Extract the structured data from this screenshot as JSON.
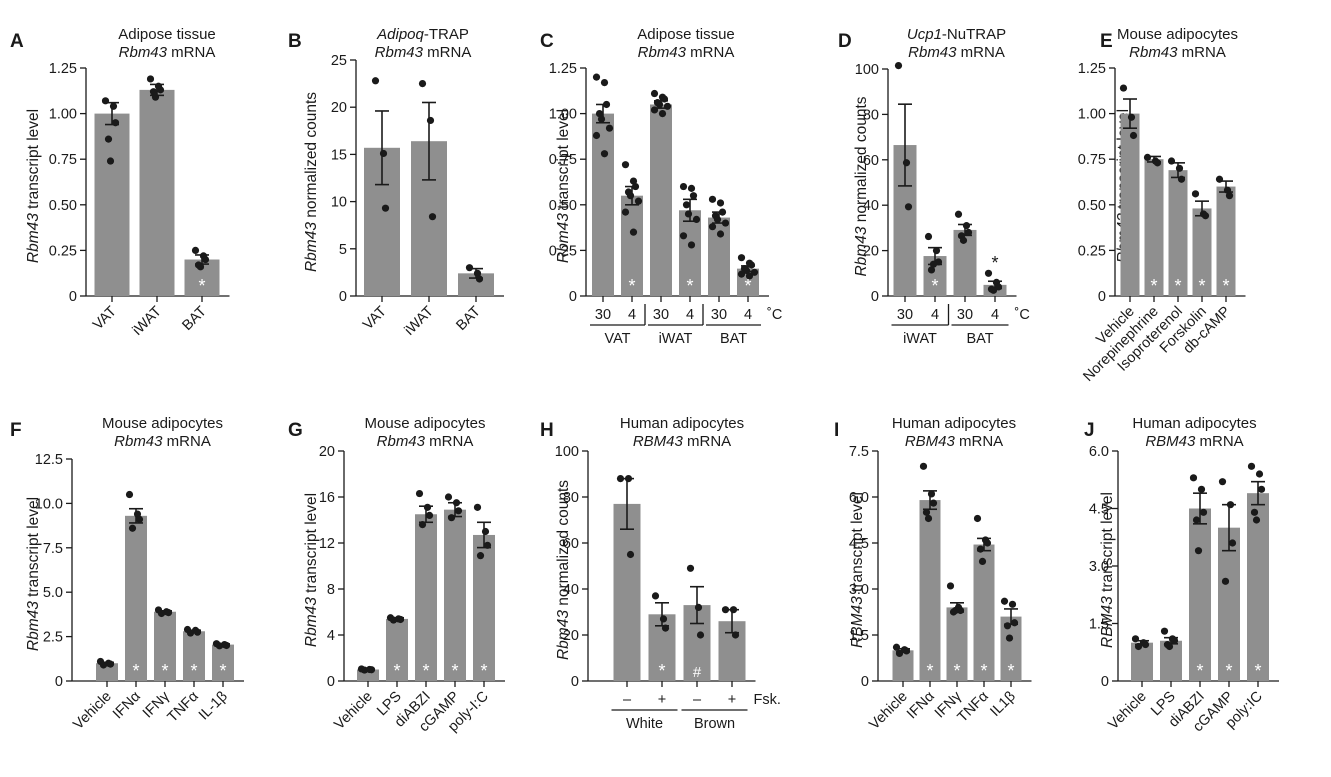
{
  "chart_data": [
    {
      "panel": "A",
      "type": "bar",
      "title": "Adipose tissue",
      "subtitle": "Rbm43 mRNA",
      "ylabel": "Rbm43 transcript level",
      "ylim": [
        0,
        1.25
      ],
      "yticks": [
        "0",
        "0.25",
        "0.50",
        "0.75",
        "1.00",
        "1.25"
      ],
      "ytickvals": [
        0,
        0.25,
        0.5,
        0.75,
        1.0,
        1.25
      ],
      "categories": [
        "VAT",
        "iWAT",
        "BAT"
      ],
      "values": [
        1.0,
        1.13,
        0.2
      ],
      "sem": [
        0.06,
        0.03,
        0.025
      ],
      "points": [
        [
          1.07,
          1.04,
          0.95,
          0.86,
          0.74
        ],
        [
          1.19,
          1.15,
          1.13,
          1.12,
          1.09
        ],
        [
          0.25,
          0.22,
          0.2,
          0.17,
          0.16
        ]
      ],
      "marks": [
        "",
        "",
        "*"
      ]
    },
    {
      "panel": "B",
      "type": "bar",
      "title": "Adipoq-TRAP",
      "subtitle": "Rbm43 mRNA",
      "ylabel": "Rbm43 normalized counts",
      "ylim": [
        0,
        25
      ],
      "yticks": [
        "0",
        "5",
        "10",
        "15",
        "20",
        "25"
      ],
      "ytickvals": [
        0,
        5,
        10,
        15,
        20,
        25
      ],
      "categories": [
        "VAT",
        "iWAT",
        "BAT"
      ],
      "values": [
        15.7,
        16.4,
        2.4
      ],
      "sem": [
        3.9,
        4.1,
        0.5
      ],
      "points": [
        [
          22.8,
          15.1,
          9.3
        ],
        [
          22.5,
          18.6,
          8.4
        ],
        [
          3.0,
          2.4,
          1.8
        ]
      ],
      "marks": [
        "",
        "",
        ""
      ]
    },
    {
      "panel": "C",
      "type": "bar",
      "title": "Adipose tissue",
      "subtitle": "Rbm43 mRNA",
      "ylabel": "Rbm43 transcript level",
      "ylim": [
        0,
        1.25
      ],
      "yticks": [
        "0",
        "0.25",
        "0.50",
        "0.75",
        "1.00",
        "1.25"
      ],
      "ytickvals": [
        0,
        0.25,
        0.5,
        0.75,
        1.0,
        1.25
      ],
      "categories": [
        "30",
        "4",
        "30",
        "4",
        "30",
        "4"
      ],
      "groups": [
        "VAT",
        "iWAT",
        "BAT"
      ],
      "unit": "˚C",
      "values": [
        1.0,
        0.55,
        1.05,
        0.47,
        0.43,
        0.15
      ],
      "sem": [
        0.05,
        0.05,
        0.02,
        0.06,
        0.03,
        0.015
      ],
      "points": [
        [
          1.2,
          1.17,
          1.05,
          1.0,
          0.97,
          0.92,
          0.88,
          0.78
        ],
        [
          0.72,
          0.63,
          0.6,
          0.57,
          0.55,
          0.52,
          0.46,
          0.35
        ],
        [
          1.11,
          1.09,
          1.08,
          1.06,
          1.05,
          1.04,
          1.02,
          1.0
        ],
        [
          0.6,
          0.59,
          0.55,
          0.5,
          0.45,
          0.42,
          0.33,
          0.28
        ],
        [
          0.53,
          0.51,
          0.46,
          0.44,
          0.42,
          0.4,
          0.38,
          0.34
        ],
        [
          0.21,
          0.18,
          0.17,
          0.15,
          0.14,
          0.13,
          0.12,
          0.11
        ]
      ],
      "marks": [
        "",
        "*",
        "",
        "*",
        "",
        "*"
      ]
    },
    {
      "panel": "D",
      "type": "bar",
      "title": "Ucp1-NuTRAP",
      "subtitle": "Rbm43 mRNA",
      "ylabel": "Rbm43 normalized counts",
      "ylim": [
        0,
        100
      ],
      "yticks": [
        "0",
        "20",
        "40",
        "60",
        "80",
        "100"
      ],
      "ytickvals": [
        0,
        20,
        40,
        60,
        80,
        100
      ],
      "categories": [
        "30",
        "4",
        "30",
        "4"
      ],
      "groups": [
        "iWAT",
        "BAT"
      ],
      "unit": "˚C",
      "values": [
        66.5,
        17.6,
        29.1,
        4.9
      ],
      "sem": [
        18.0,
        3.7,
        2.4,
        1.6
      ],
      "points": [
        [
          101.5,
          58.7,
          39.3
        ],
        [
          26.2,
          20.0,
          15.0,
          11.5,
          14.0
        ],
        [
          36.0,
          31.0,
          28.0,
          26.5,
          24.5
        ],
        [
          10.0,
          6.0,
          4.0,
          3.0,
          2.5
        ]
      ],
      "marks": [
        "",
        "*",
        "",
        "*"
      ],
      "markColors": [
        "",
        "white",
        "",
        "black"
      ]
    },
    {
      "panel": "E",
      "type": "bar",
      "title": "Mouse adipocytes",
      "subtitle": "Rbm43 mRNA",
      "ylabel": "Rbm43 transcript level",
      "ylim": [
        0,
        1.25
      ],
      "yticks": [
        "0",
        "0.25",
        "0.50",
        "0.75",
        "1.00",
        "1.25"
      ],
      "ytickvals": [
        0,
        0.25,
        0.5,
        0.75,
        1.0,
        1.25
      ],
      "categories": [
        "Vehicle",
        "Norepinephrine",
        "Isoproterenol",
        "Forskolin",
        "db-cAMP"
      ],
      "values": [
        1.0,
        0.75,
        0.69,
        0.48,
        0.6
      ],
      "sem": [
        0.08,
        0.015,
        0.04,
        0.04,
        0.03
      ],
      "points": [
        [
          1.14,
          0.98,
          0.88
        ],
        [
          0.76,
          0.74,
          0.73
        ],
        [
          0.74,
          0.7,
          0.64
        ],
        [
          0.56,
          0.45,
          0.44
        ],
        [
          0.64,
          0.58,
          0.55
        ]
      ],
      "marks": [
        "",
        "*",
        "*",
        "*",
        "*"
      ]
    },
    {
      "panel": "F",
      "type": "bar",
      "title": "Mouse adipocytes",
      "subtitle": "Rbm43 mRNA",
      "ylabel": "Rbm43 transcript level",
      "ylim": [
        0,
        12.5
      ],
      "yticks": [
        "0",
        "2.5",
        "5.0",
        "7.5",
        "10.0",
        "12.5"
      ],
      "ytickvals": [
        0,
        2.5,
        5,
        7.5,
        10,
        12.5
      ],
      "categories": [
        "Vehicle",
        "IFNα",
        "IFNγ",
        "TNFα",
        "IL-1β"
      ],
      "values": [
        1.0,
        9.3,
        3.9,
        2.8,
        2.05
      ],
      "sem": [
        0.05,
        0.4,
        0.05,
        0.06,
        0.04
      ],
      "points": [
        [
          1.1,
          1.0,
          0.95,
          0.9
        ],
        [
          10.5,
          9.4,
          9.1,
          8.6
        ],
        [
          4.0,
          3.9,
          3.85,
          3.8
        ],
        [
          2.9,
          2.85,
          2.75,
          2.7
        ],
        [
          2.1,
          2.05,
          2.0,
          1.98
        ]
      ],
      "marks": [
        "",
        "*",
        "*",
        "*",
        "*"
      ]
    },
    {
      "panel": "G",
      "type": "bar",
      "title": "Mouse adipocytes",
      "subtitle": "Rbm43 mRNA",
      "ylabel": "Rbm43 transcript level",
      "ylim": [
        0,
        20
      ],
      "yticks": [
        "0",
        "4",
        "8",
        "12",
        "16",
        "20"
      ],
      "ytickvals": [
        0,
        4,
        8,
        12,
        16,
        20
      ],
      "categories": [
        "Vehicle",
        "LPS",
        "diABZI",
        "cGAMP",
        "poly-I:C"
      ],
      "values": [
        1.0,
        5.4,
        14.5,
        14.9,
        12.7
      ],
      "sem": [
        0.03,
        0.1,
        0.7,
        0.6,
        1.1
      ],
      "points": [
        [
          1.05,
          1.0,
          0.98,
          0.95
        ],
        [
          5.5,
          5.4,
          5.35,
          5.3
        ],
        [
          16.3,
          15.1,
          14.4,
          13.6
        ],
        [
          16.0,
          15.5,
          14.8,
          14.2
        ],
        [
          15.1,
          13.0,
          11.8,
          10.9
        ]
      ],
      "marks": [
        "",
        "*",
        "*",
        "*",
        "*"
      ]
    },
    {
      "panel": "H",
      "type": "bar",
      "title": "Human adipocytes",
      "subtitle": "RBM43 mRNA",
      "ylabel": "Rbm43 normalized counts",
      "ylim": [
        0,
        100
      ],
      "yticks": [
        "0",
        "20",
        "40",
        "60",
        "80",
        "100"
      ],
      "ytickvals": [
        0,
        20,
        40,
        60,
        80,
        100
      ],
      "categories": [
        "–",
        "+",
        "–",
        "+"
      ],
      "groups": [
        "White",
        "Brown"
      ],
      "unit": "Fsk.",
      "values": [
        77.0,
        29.0,
        33.0,
        26.0
      ],
      "sem": [
        11.0,
        5.0,
        8.0,
        5.0
      ],
      "points": [
        [
          88.0,
          88.0,
          55.0
        ],
        [
          37.0,
          27.0,
          23.0
        ],
        [
          49.0,
          32.0,
          20.0
        ],
        [
          31.0,
          31.0,
          20.0
        ]
      ],
      "marks": [
        "",
        "*",
        "#",
        ""
      ]
    },
    {
      "panel": "I",
      "type": "bar",
      "title": "Human adipocytes",
      "subtitle": "RBM43 mRNA",
      "ylabel": "RBM43 transcript level",
      "ylim": [
        0,
        7.5
      ],
      "yticks": [
        "0",
        "1.5",
        "3.0",
        "4.5",
        "6.0",
        "7.5"
      ],
      "ytickvals": [
        0,
        1.5,
        3,
        4.5,
        6,
        7.5
      ],
      "categories": [
        "Vehicle",
        "IFNα",
        "IFNγ",
        "TNFα",
        "IL1β"
      ],
      "values": [
        1.0,
        5.9,
        2.4,
        4.45,
        2.1
      ],
      "sem": [
        0.05,
        0.3,
        0.15,
        0.2,
        0.25
      ],
      "points": [
        [
          1.1,
          1.02,
          0.98,
          0.9
        ],
        [
          7.0,
          6.1,
          5.8,
          5.5,
          5.3
        ],
        [
          3.1,
          2.4,
          2.3,
          2.25,
          2.3
        ],
        [
          5.3,
          4.6,
          4.5,
          4.3,
          3.9
        ],
        [
          2.6,
          2.5,
          1.9,
          1.8,
          1.4
        ]
      ],
      "marks": [
        "",
        "*",
        "*",
        "*",
        "*"
      ]
    },
    {
      "panel": "J",
      "type": "bar",
      "title": "Human adipocytes",
      "subtitle": "RBM43 mRNA",
      "ylabel": "RBM43 transcript level",
      "ylim": [
        0,
        6
      ],
      "yticks": [
        "0",
        "1.5",
        "3.0",
        "4.5",
        "6.0"
      ],
      "ytickvals": [
        0,
        1.5,
        3,
        4.5,
        6
      ],
      "categories": [
        "Vehicle",
        "LPS",
        "diABZI",
        "cGAMP",
        "poly:IC"
      ],
      "values": [
        1.0,
        1.05,
        4.5,
        4.0,
        4.9
      ],
      "sem": [
        0.05,
        0.08,
        0.4,
        0.6,
        0.3
      ],
      "points": [
        [
          1.1,
          1.0,
          0.95,
          0.9
        ],
        [
          1.3,
          1.1,
          1.05,
          0.95,
          0.9
        ],
        [
          5.3,
          5.0,
          4.4,
          4.2,
          3.4
        ],
        [
          5.2,
          4.6,
          3.6,
          2.6
        ],
        [
          5.6,
          5.4,
          5.0,
          4.4,
          4.2
        ]
      ],
      "marks": [
        "",
        "",
        "*",
        "*",
        "*"
      ]
    }
  ]
}
